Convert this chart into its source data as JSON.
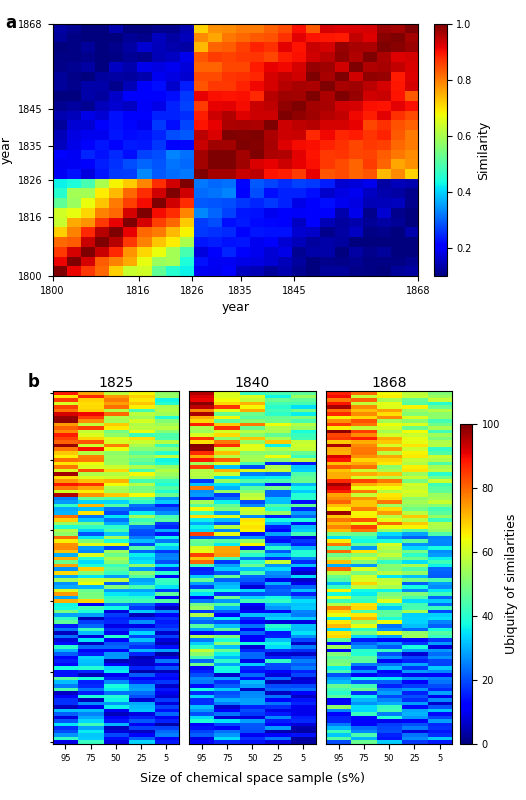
{
  "panel_a": {
    "title_label": "a",
    "xtick_labels": [
      "1800",
      "1816",
      "1826",
      "1835",
      "1845",
      "1868"
    ],
    "ytick_labels": [
      "1800",
      "1816",
      "1826",
      "1835",
      "1845",
      "1868"
    ],
    "xtick_vals": [
      1800,
      1816,
      1826,
      1835,
      1845,
      1868
    ],
    "xlabel": "year",
    "ylabel": "year",
    "colorbar_label": "Similarity",
    "colorbar_ticks": [
      0.2,
      0.4,
      0.6,
      0.8,
      1.0
    ],
    "vmin": 0.1,
    "vmax": 1.0,
    "year_start": 1800,
    "year_end": 1868
  },
  "panel_b": {
    "title_label": "b",
    "subtitles": [
      "1825",
      "1840",
      "1868"
    ],
    "xlabel": "Size of chemical space sample (s%)",
    "ylabel": "Ubiquity of similarities",
    "colorbar_ticks": [
      0,
      20,
      40,
      60,
      80,
      100
    ],
    "xtick_labels": [
      "95",
      "75",
      "50",
      "25",
      "5"
    ],
    "vmin": 0,
    "vmax": 100
  }
}
